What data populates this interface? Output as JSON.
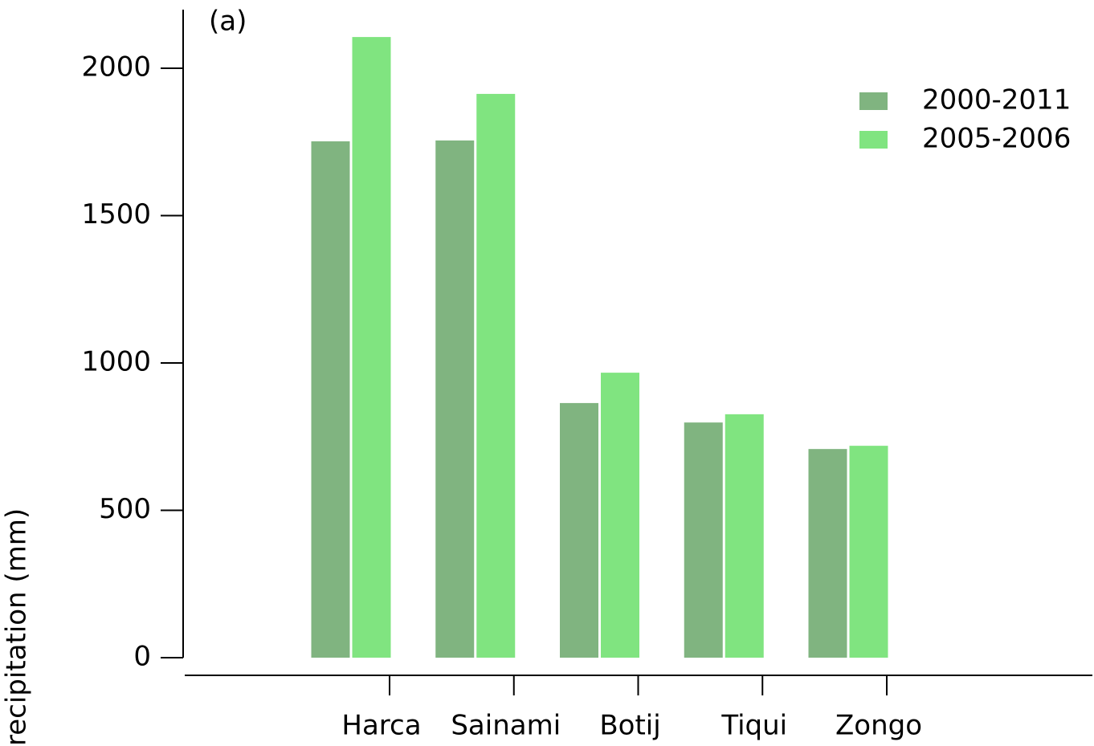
{
  "chart_data": {
    "type": "bar",
    "annotation": "(a)",
    "y_label": "recipitation (mm)",
    "categories": [
      "Harca",
      "Sainami",
      "Botij",
      "Tiqui",
      "Zongo"
    ],
    "series": [
      {
        "name": "2000-2011",
        "color": "#80b480",
        "values": [
          1752,
          1755,
          864,
          798,
          708
        ]
      },
      {
        "name": "2005-2006",
        "color": "#80e480",
        "values": [
          2106,
          1913,
          967,
          826,
          719
        ]
      }
    ],
    "ylim": [
      0,
      2000
    ],
    "yticks": [
      0,
      500,
      1000,
      1500,
      2000
    ],
    "legend": "upper right"
  }
}
